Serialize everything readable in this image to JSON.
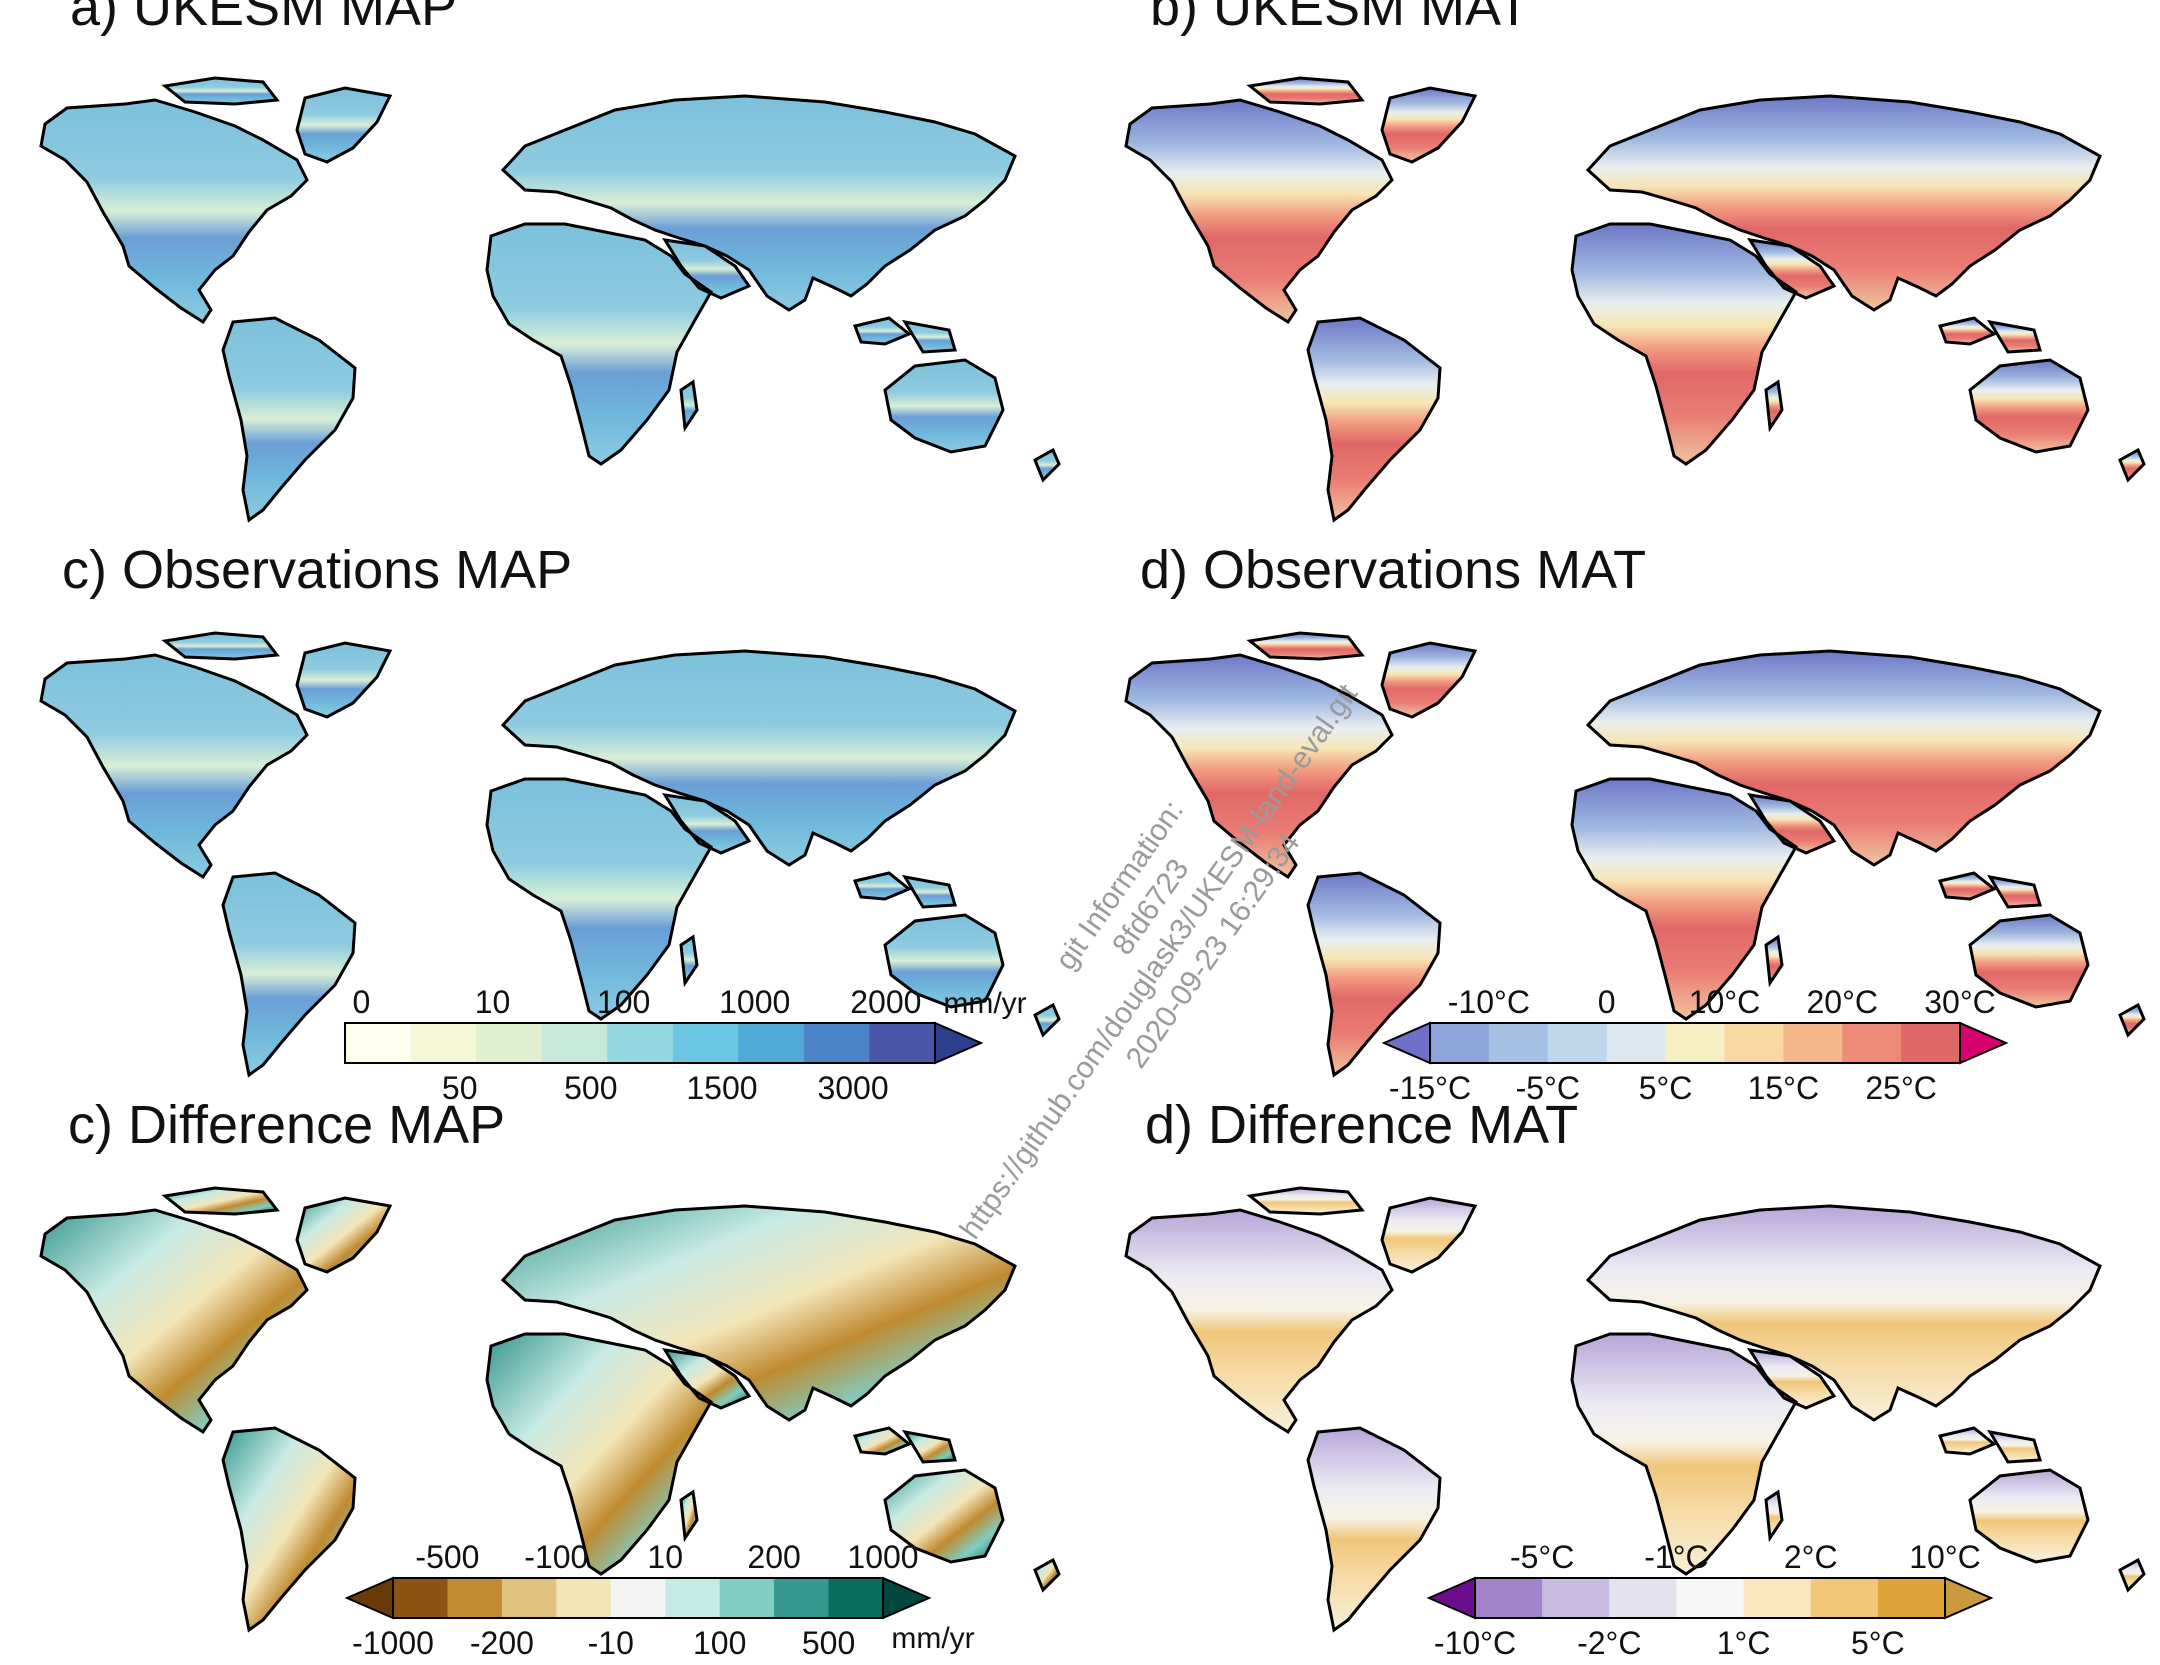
{
  "panels": [
    {
      "id": "a",
      "title": "a) UKESM MAP",
      "palette": "precip",
      "stipple": "heavy",
      "colorbar": null
    },
    {
      "id": "b",
      "title": "b) UKESM MAT",
      "palette": "temp",
      "stipple": "tropics",
      "colorbar": null
    },
    {
      "id": "c_obs",
      "title": "c) Observations MAP",
      "palette": "precip",
      "stipple": "heavy",
      "colorbar": {
        "upper_labels": [
          "0",
          "10",
          "100",
          "1000",
          "2000"
        ],
        "lower_labels": [
          "50",
          "500",
          "1500",
          "3000"
        ],
        "unit": "mm/yr",
        "colors": [
          "#fffff0",
          "#f6f9d8",
          "#e0f0d0",
          "#c6e9dc",
          "#98d8e0",
          "#6cc6e2",
          "#52a8d6",
          "#4c82c8",
          "#4a56a8"
        ],
        "right_arrow": "#2c3f8c",
        "left_arrow": null
      }
    },
    {
      "id": "d_obs",
      "title": "d) Observations MAT",
      "palette": "temp",
      "stipple": "none",
      "colorbar": {
        "upper_labels": [
          "-10°C",
          "0",
          "10°C",
          "20°C",
          "30°C"
        ],
        "lower_labels": [
          "-15°C",
          "-5°C",
          "5°C",
          "15°C",
          "25°C"
        ],
        "unit": "",
        "colors": [
          "#8ea4d8",
          "#a6c0e2",
          "#c0d6ea",
          "#dce8ee",
          "#f7efc4",
          "#f7d8a4",
          "#f4b88c",
          "#ec8c78",
          "#e06868"
        ],
        "right_arrow": "#d6006e",
        "left_arrow": "#6e70c8"
      }
    },
    {
      "id": "c_diff",
      "title": "c) Difference MAP",
      "palette": "diffp",
      "stipple": "sparse",
      "colorbar": {
        "upper_labels": [
          "-500",
          "-100",
          "10",
          "200",
          "1000"
        ],
        "lower_labels": [
          "-1000",
          "-200",
          "-10",
          "100",
          "500"
        ],
        "unit": "mm/yr",
        "colors": [
          "#8c5412",
          "#bf8a30",
          "#dfc27d",
          "#f3e5b8",
          "#f5f5f5",
          "#c8eae4",
          "#80cdc1",
          "#35978f",
          "#0b6b5c"
        ],
        "right_arrow": "#01473f",
        "left_arrow": "#6a3a06"
      }
    },
    {
      "id": "d_diff",
      "title": "d) Difference MAT",
      "palette": "difft",
      "stipple": "desert",
      "colorbar": {
        "upper_labels": [
          "-5°C",
          "-1°C",
          "2°C",
          "10°C"
        ],
        "lower_labels": [
          "-10°C",
          "-2°C",
          "1°C",
          "5°C"
        ],
        "unit": "",
        "colors": [
          "#a184c8",
          "#c8bde0",
          "#e4e2ef",
          "#f7f7f7",
          "#fce8c0",
          "#f2c77a",
          "#dea43c"
        ],
        "right_arrow": "#cc9a3e",
        "left_arrow": "#6a0e8c"
      }
    }
  ],
  "watermark": {
    "lines": [
      "git Information:",
      "8fd6723",
      "https://github.com/douglask3/UKESM-land-eval.git",
      "2020-09-23 16:29:34"
    ]
  }
}
